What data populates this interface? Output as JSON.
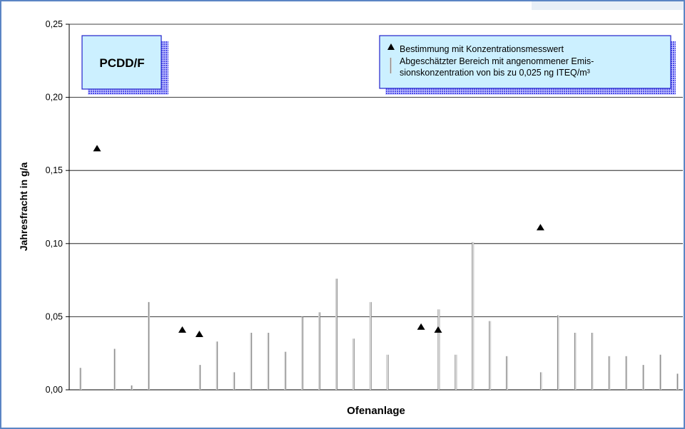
{
  "chart_data": {
    "type": "scatter",
    "title": "PCDD/F",
    "xlabel": "Ofenanlage",
    "ylabel": "Jahresfracht in g/a",
    "ylim": [
      0,
      0.25
    ],
    "yticks": [
      "0,00",
      "0,05",
      "0,10",
      "0,15",
      "0,20",
      "0,25"
    ],
    "ytick_values": [
      0,
      0.05,
      0.1,
      0.15,
      0.2,
      0.25
    ],
    "grid": true,
    "legend_position": "top-right",
    "n_positions": 36,
    "legend": {
      "marker_label": "Bestimmung mit Konzentrationsmesswert",
      "range_label_line1": "Abgeschätzter Bereich mit angenommener Emis-",
      "range_label_line2": "sionskonzentration von bis zu 0,025 ng ITEQ/m³"
    },
    "series": [
      {
        "kind": "range",
        "points": [
          {
            "x": 1,
            "y": 0.015
          },
          {
            "x": 3,
            "y": 0.028
          },
          {
            "x": 4,
            "y": 0.003
          },
          {
            "x": 5,
            "y": 0.06
          },
          {
            "x": 8,
            "y": 0.017
          },
          {
            "x": 9,
            "y": 0.033
          },
          {
            "x": 10,
            "y": 0.012
          },
          {
            "x": 11,
            "y": 0.039
          },
          {
            "x": 12,
            "y": 0.039
          },
          {
            "x": 13,
            "y": 0.026
          },
          {
            "x": 14,
            "y": 0.05
          },
          {
            "x": 15,
            "y": 0.053
          },
          {
            "x": 16,
            "y": 0.076
          },
          {
            "x": 17,
            "y": 0.035
          },
          {
            "x": 18,
            "y": 0.06
          },
          {
            "x": 19,
            "y": 0.024
          },
          {
            "x": 22,
            "y": 0.055
          },
          {
            "x": 23,
            "y": 0.024
          },
          {
            "x": 24,
            "y": 0.101
          },
          {
            "x": 25,
            "y": 0.047
          },
          {
            "x": 26,
            "y": 0.023
          },
          {
            "x": 28,
            "y": 0.012
          },
          {
            "x": 29,
            "y": 0.051
          },
          {
            "x": 30,
            "y": 0.039
          },
          {
            "x": 31,
            "y": 0.039
          },
          {
            "x": 32,
            "y": 0.023
          },
          {
            "x": 33,
            "y": 0.023
          },
          {
            "x": 34,
            "y": 0.017
          },
          {
            "x": 35,
            "y": 0.024
          },
          {
            "x": 36,
            "y": 0.011
          }
        ]
      },
      {
        "kind": "measured",
        "points": [
          {
            "x": 1,
            "y": 0.165
          },
          {
            "x": 6,
            "y": 0.041
          },
          {
            "x": 7,
            "y": 0.038
          },
          {
            "x": 20,
            "y": 0.043
          },
          {
            "x": 21,
            "y": 0.041
          },
          {
            "x": 27,
            "y": 0.111
          }
        ]
      }
    ]
  }
}
